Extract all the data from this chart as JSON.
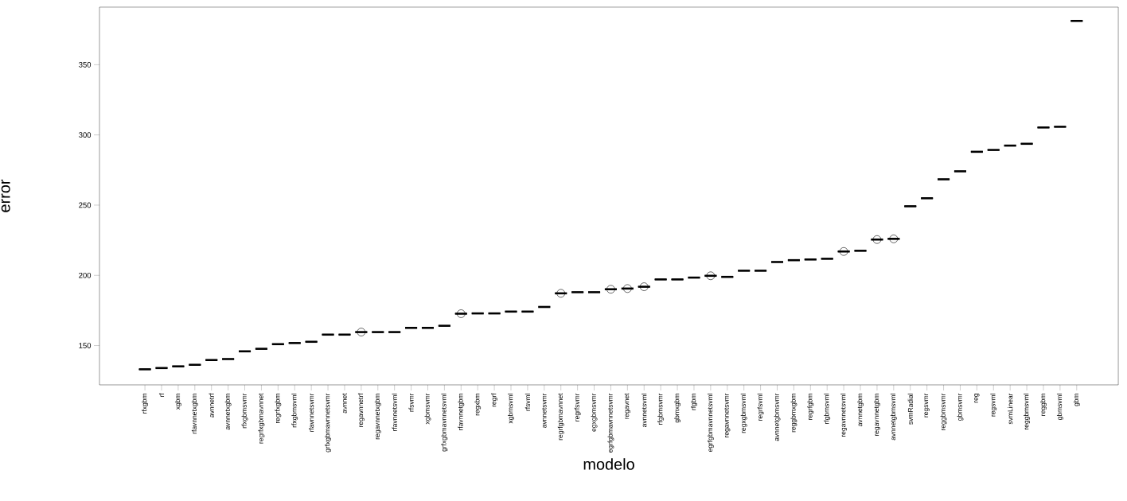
{
  "chart_data": {
    "type": "box",
    "xlabel": "modelo",
    "ylabel": "error",
    "categories": [
      "rfxgbm",
      "rf",
      "xgbm",
      "rfavnnetxgbm",
      "avnnetrf",
      "avnnetxgbm",
      "rfxgbmsvmr",
      "regrfxgbmavnnet",
      "regrfxgbm",
      "rfxgbmsvml",
      "rfavnnetsvmr",
      "grfxgbmavnnetsvmr",
      "avnnet",
      "regavnnetrf",
      "regavnnetxgbm",
      "rfavnnetsvml",
      "rfsvmr",
      "xgbmsvmr",
      "grfxgbmavnnetsvml",
      "rfavnnetgbm",
      "regxbm",
      "regrf",
      "xgbmsvml",
      "rfsvml",
      "avnnetsvmr",
      "regrfgbmavnnet",
      "regrfsvmr",
      "egxgbmsvmr",
      "egrfgbmavnnetsvmr",
      "regavnet",
      "avnnetsvml",
      "rfgbmsvmr",
      "gbmxgbm",
      "rfgbm",
      "egrfgbmavnnetsvml",
      "regavnnetsvmr",
      "regxgbmsvml",
      "regrfsvml",
      "avnnetgbmsvmr",
      "reggbmxgbm",
      "regrfgbm",
      "rfgbmsvml",
      "regavnnetsvml",
      "avnnetgbm",
      "regavnnetgbm",
      "avnnetgbmsvml",
      "svmRadial",
      "regsvmr",
      "reggbmsvmr",
      "gbmsvmr",
      "reg",
      "regsvml",
      "svmLinear",
      "reggbmsvml",
      "reggbm",
      "gbmsvml",
      "gbm"
    ],
    "boxes": [
      {
        "low": 133.1,
        "q1": 133.1,
        "median": 133.1,
        "q3": 133.1,
        "high": 133.1
      },
      {
        "low": 134.0,
        "q1": 134.0,
        "median": 134.0,
        "q3": 134.0,
        "high": 134.0
      },
      {
        "low": 135.2,
        "q1": 135.2,
        "median": 135.2,
        "q3": 135.2,
        "high": 135.2
      },
      {
        "low": 136.3,
        "q1": 136.3,
        "median": 136.3,
        "q3": 136.3,
        "high": 136.3
      },
      {
        "low": 139.7,
        "q1": 139.7,
        "median": 139.7,
        "q3": 139.7,
        "high": 139.7
      },
      {
        "low": 140.4,
        "q1": 140.4,
        "median": 140.4,
        "q3": 140.4,
        "high": 140.4
      },
      {
        "low": 145.9,
        "q1": 145.9,
        "median": 145.9,
        "q3": 145.9,
        "high": 145.9
      },
      {
        "low": 147.7,
        "q1": 147.7,
        "median": 147.7,
        "q3": 147.7,
        "high": 147.7
      },
      {
        "low": 151.0,
        "q1": 151.0,
        "median": 151.0,
        "q3": 151.0,
        "high": 151.0
      },
      {
        "low": 151.8,
        "q1": 151.8,
        "median": 151.8,
        "q3": 151.8,
        "high": 151.8
      },
      {
        "low": 152.7,
        "q1": 152.7,
        "median": 152.7,
        "q3": 152.7,
        "high": 152.7
      },
      {
        "low": 157.8,
        "q1": 157.8,
        "median": 157.8,
        "q3": 157.8,
        "high": 157.8
      },
      {
        "low": 157.8,
        "q1": 157.8,
        "median": 157.8,
        "q3": 157.8,
        "high": 157.8
      },
      {
        "low": 159.6,
        "q1": 159.6,
        "median": 159.6,
        "q3": 159.6,
        "high": 159.6,
        "outliers": [
          159.6
        ]
      },
      {
        "low": 159.6,
        "q1": 159.6,
        "median": 159.6,
        "q3": 159.6,
        "high": 159.6
      },
      {
        "low": 159.6,
        "q1": 159.6,
        "median": 159.6,
        "q3": 159.6,
        "high": 159.6
      },
      {
        "low": 162.6,
        "q1": 162.6,
        "median": 162.6,
        "q3": 162.6,
        "high": 162.6
      },
      {
        "low": 162.6,
        "q1": 162.6,
        "median": 162.6,
        "q3": 162.6,
        "high": 162.6
      },
      {
        "low": 164.1,
        "q1": 164.1,
        "median": 164.1,
        "q3": 164.1,
        "high": 164.1
      },
      {
        "low": 172.7,
        "q1": 172.7,
        "median": 172.7,
        "q3": 172.7,
        "high": 172.7,
        "outliers": [
          172.7
        ]
      },
      {
        "low": 172.9,
        "q1": 172.9,
        "median": 172.9,
        "q3": 172.9,
        "high": 172.9
      },
      {
        "low": 172.9,
        "q1": 172.9,
        "median": 172.9,
        "q3": 172.9,
        "high": 172.9
      },
      {
        "low": 174.2,
        "q1": 174.2,
        "median": 174.2,
        "q3": 174.2,
        "high": 174.2
      },
      {
        "low": 174.2,
        "q1": 174.2,
        "median": 174.2,
        "q3": 174.2,
        "high": 174.2
      },
      {
        "low": 177.5,
        "q1": 177.5,
        "median": 177.5,
        "q3": 177.5,
        "high": 177.5
      },
      {
        "low": 187.2,
        "q1": 187.2,
        "median": 187.2,
        "q3": 187.2,
        "high": 187.2,
        "outliers": [
          187.2
        ]
      },
      {
        "low": 188.0,
        "q1": 188.0,
        "median": 188.0,
        "q3": 188.0,
        "high": 188.0
      },
      {
        "low": 188.0,
        "q1": 188.0,
        "median": 188.0,
        "q3": 188.0,
        "high": 188.0
      },
      {
        "low": 190.1,
        "q1": 190.1,
        "median": 190.1,
        "q3": 190.1,
        "high": 190.1,
        "outliers": [
          190.1
        ]
      },
      {
        "low": 190.6,
        "q1": 190.6,
        "median": 190.6,
        "q3": 190.6,
        "high": 190.6,
        "outliers": [
          190.6
        ]
      },
      {
        "low": 191.9,
        "q1": 191.9,
        "median": 191.9,
        "q3": 191.9,
        "high": 191.9,
        "outliers": [
          191.9
        ]
      },
      {
        "low": 197.1,
        "q1": 197.1,
        "median": 197.1,
        "q3": 197.1,
        "high": 197.1
      },
      {
        "low": 197.1,
        "q1": 197.1,
        "median": 197.1,
        "q3": 197.1,
        "high": 197.1
      },
      {
        "low": 198.4,
        "q1": 198.4,
        "median": 198.4,
        "q3": 198.4,
        "high": 198.4
      },
      {
        "low": 199.7,
        "q1": 199.7,
        "median": 199.7,
        "q3": 199.7,
        "high": 199.7,
        "outliers": [
          199.7
        ]
      },
      {
        "low": 198.9,
        "q1": 198.9,
        "median": 198.9,
        "q3": 198.9,
        "high": 198.9
      },
      {
        "low": 203.3,
        "q1": 203.3,
        "median": 203.3,
        "q3": 203.3,
        "high": 203.3
      },
      {
        "low": 203.3,
        "q1": 203.3,
        "median": 203.3,
        "q3": 203.3,
        "high": 203.3
      },
      {
        "low": 209.5,
        "q1": 209.5,
        "median": 209.5,
        "q3": 209.5,
        "high": 209.5
      },
      {
        "low": 210.8,
        "q1": 210.8,
        "median": 210.8,
        "q3": 210.8,
        "high": 210.8
      },
      {
        "low": 211.3,
        "q1": 211.3,
        "median": 211.3,
        "q3": 211.3,
        "high": 211.3
      },
      {
        "low": 211.8,
        "q1": 211.8,
        "median": 211.8,
        "q3": 211.8,
        "high": 211.8
      },
      {
        "low": 217.0,
        "q1": 217.0,
        "median": 217.0,
        "q3": 217.0,
        "high": 217.0,
        "outliers": [
          217.0
        ]
      },
      {
        "low": 217.5,
        "q1": 217.5,
        "median": 217.5,
        "q3": 217.5,
        "high": 217.5
      },
      {
        "low": 225.5,
        "q1": 225.5,
        "median": 225.5,
        "q3": 225.5,
        "high": 225.5,
        "outliers": [
          225.5
        ]
      },
      {
        "low": 226.0,
        "q1": 226.0,
        "median": 226.0,
        "q3": 226.0,
        "high": 226.0,
        "outliers": [
          226.0
        ]
      },
      {
        "low": 249.2,
        "q1": 249.2,
        "median": 249.2,
        "q3": 249.2,
        "high": 249.2
      },
      {
        "low": 254.9,
        "q1": 254.9,
        "median": 254.9,
        "q3": 254.9,
        "high": 254.9
      },
      {
        "low": 268.4,
        "q1": 268.4,
        "median": 268.4,
        "q3": 268.4,
        "high": 268.4
      },
      {
        "low": 274.1,
        "q1": 274.1,
        "median": 274.1,
        "q3": 274.1,
        "high": 274.1
      },
      {
        "low": 288.0,
        "q1": 288.0,
        "median": 288.0,
        "q3": 288.0,
        "high": 288.0
      },
      {
        "low": 289.3,
        "q1": 289.3,
        "median": 289.3,
        "q3": 289.3,
        "high": 289.3
      },
      {
        "low": 292.4,
        "q1": 292.4,
        "median": 292.4,
        "q3": 292.4,
        "high": 292.4
      },
      {
        "low": 293.7,
        "q1": 293.7,
        "median": 293.7,
        "q3": 293.7,
        "high": 293.7
      },
      {
        "low": 305.3,
        "q1": 305.3,
        "median": 305.3,
        "q3": 305.3,
        "high": 305.3
      },
      {
        "low": 305.8,
        "q1": 305.8,
        "median": 305.8,
        "q3": 305.8,
        "high": 305.8
      },
      {
        "low": 381.2,
        "q1": 381.2,
        "median": 381.2,
        "q3": 381.2,
        "high": 381.2
      }
    ],
    "ylim": [
      122,
      391
    ],
    "yticks": [
      {
        "value": 150,
        "label": "150"
      },
      {
        "value": 200,
        "label": "200"
      },
      {
        "value": 250,
        "label": "250"
      },
      {
        "value": 300,
        "label": "300"
      },
      {
        "value": 350,
        "label": "350"
      }
    ],
    "grid": false,
    "color": "#000000"
  }
}
